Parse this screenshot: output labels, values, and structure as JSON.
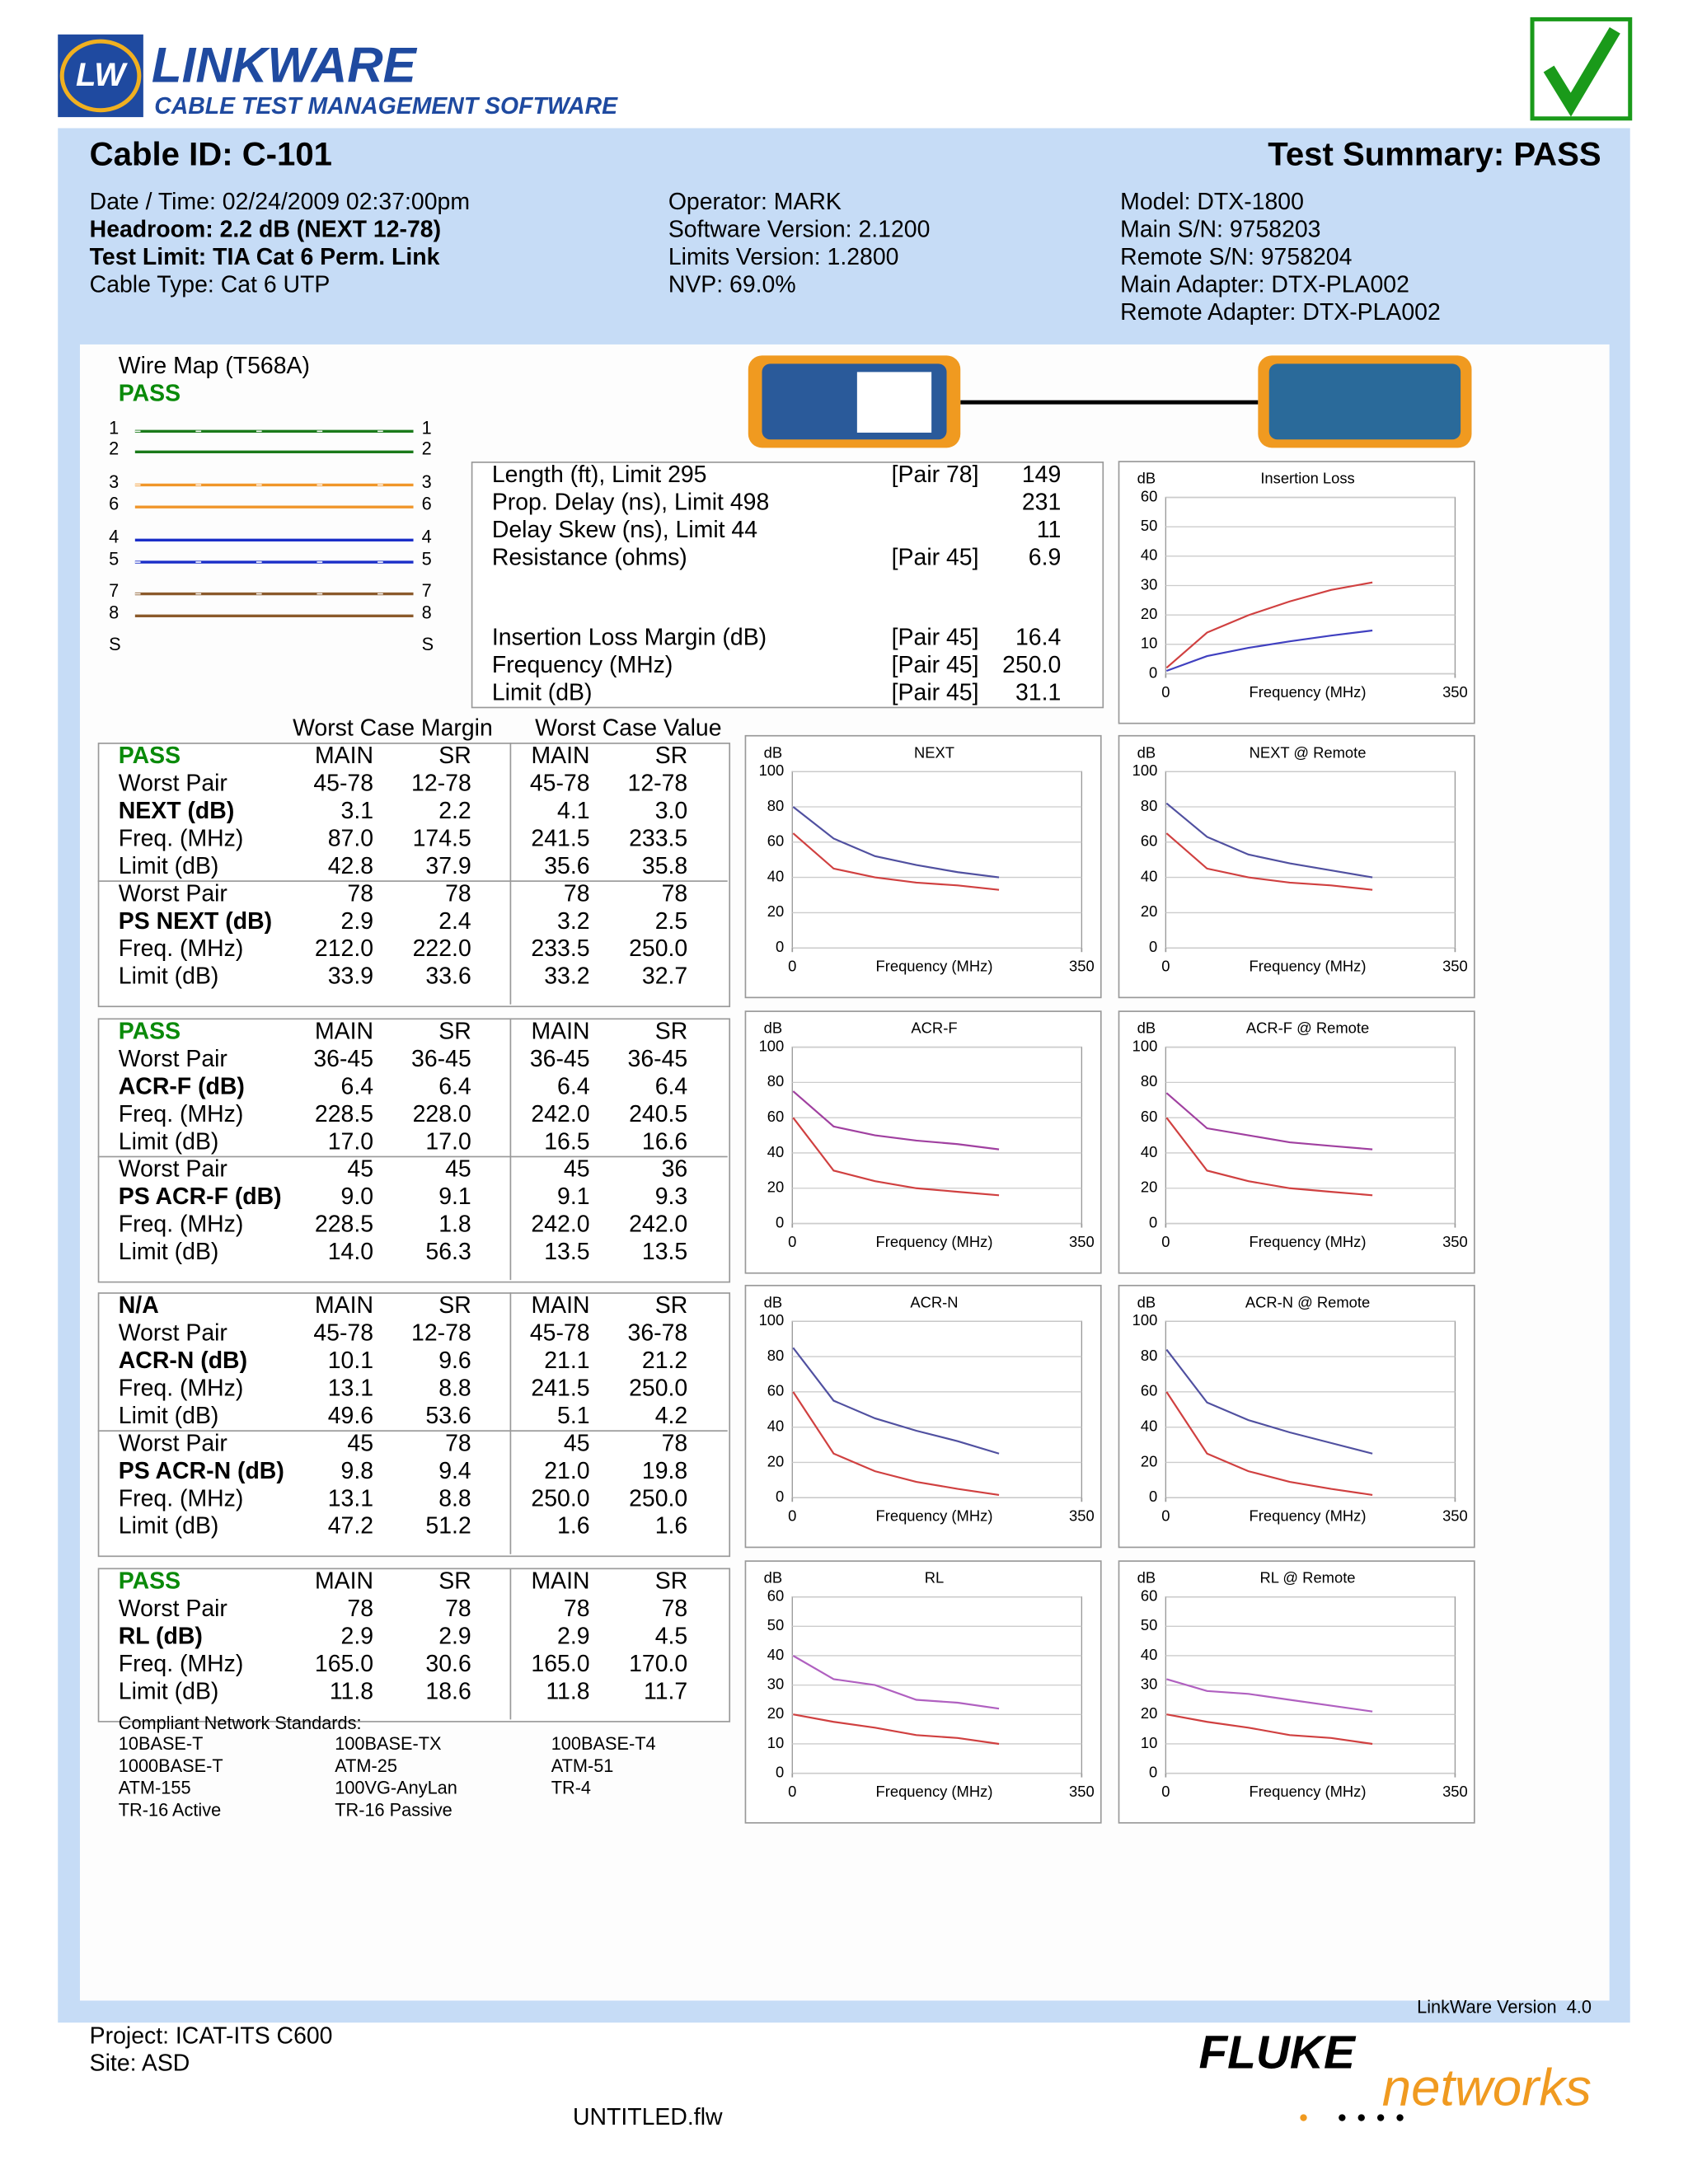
{
  "header": {
    "logo_mark": "LW",
    "logo_name": "LINKWARE",
    "logo_tagline": "CABLE TEST MANAGEMENT SOFTWARE"
  },
  "summary": {
    "cable_id": "Cable ID: C-101",
    "test_summary": "Test Summary: PASS",
    "col1": [
      "Date / Time: 02/24/2009 02:37:00pm",
      "Headroom: 2.2 dB (NEXT 12-78)",
      "Test Limit: TIA Cat 6 Perm. Link",
      "Cable Type: Cat 6 UTP"
    ],
    "col2": [
      "Operator: MARK",
      "Software Version: 2.1200",
      "Limits Version: 1.2800",
      "NVP: 69.0%"
    ],
    "col3": [
      "Model: DTX-1800",
      "Main S/N: 9758203",
      "Remote S/N: 9758204",
      "Main Adapter: DTX-PLA002",
      "Remote Adapter: DTX-PLA002"
    ]
  },
  "wire_map": {
    "title": "Wire Map (T568A)",
    "status": "PASS",
    "pins": [
      "1",
      "2",
      "3",
      "6",
      "4",
      "5",
      "7",
      "8",
      "S"
    ]
  },
  "length_table": {
    "rows": [
      {
        "label": "Length (ft), Limit 295",
        "pair": "[Pair 78]",
        "value": "149"
      },
      {
        "label": "Prop. Delay (ns), Limit 498",
        "value": "231"
      },
      {
        "label": "Delay Skew (ns), Limit 44",
        "value": "11"
      },
      {
        "label": "Resistance (ohms)",
        "pair": "[Pair 45]",
        "value": "6.9"
      }
    ],
    "insertion_rows": [
      {
        "label": "Insertion Loss Margin (dB)",
        "pair": "[Pair 45]",
        "value": "16.4"
      },
      {
        "label": "Frequency (MHz)",
        "pair": "[Pair 45]",
        "value": "250.0"
      },
      {
        "label": "Limit (dB)",
        "pair": "[Pair 45]",
        "value": "31.1"
      }
    ]
  },
  "worst_case": {
    "margin_header": "Worst Case Margin",
    "value_header": "Worst Case Value",
    "tables": [
      {
        "status": "PASS",
        "columns": [
          "MAIN",
          "SR",
          "MAIN",
          "SR"
        ],
        "rows": [
          [
            "Worst Pair",
            "45-78",
            "12-78",
            "45-78",
            "12-78"
          ],
          [
            "NEXT (dB)",
            "3.1",
            "2.2",
            "4.1",
            "3.0"
          ],
          [
            "Freq. (MHz)",
            "87.0",
            "174.5",
            "241.5",
            "233.5"
          ],
          [
            "Limit (dB)",
            "42.8",
            "37.9",
            "35.6",
            "35.8"
          ],
          [
            "Worst Pair",
            "78",
            "78",
            "78",
            "78"
          ],
          [
            "PS NEXT (dB)",
            "2.9",
            "2.4",
            "3.2",
            "2.5"
          ],
          [
            "Freq. (MHz)",
            "212.0",
            "222.0",
            "233.5",
            "250.0"
          ],
          [
            "Limit (dB)",
            "33.9",
            "33.6",
            "33.2",
            "32.7"
          ]
        ]
      },
      {
        "status": "PASS",
        "columns": [
          "MAIN",
          "SR",
          "MAIN",
          "SR"
        ],
        "rows": [
          [
            "Worst Pair",
            "36-45",
            "36-45",
            "36-45",
            "36-45"
          ],
          [
            "ACR-F (dB)",
            "6.4",
            "6.4",
            "6.4",
            "6.4"
          ],
          [
            "Freq. (MHz)",
            "228.5",
            "228.0",
            "242.0",
            "240.5"
          ],
          [
            "Limit (dB)",
            "17.0",
            "17.0",
            "16.5",
            "16.6"
          ],
          [
            "Worst Pair",
            "45",
            "45",
            "45",
            "36"
          ],
          [
            "PS ACR-F (dB)",
            "9.0",
            "9.1",
            "9.1",
            "9.3"
          ],
          [
            "Freq. (MHz)",
            "228.5",
            "1.8",
            "242.0",
            "242.0"
          ],
          [
            "Limit (dB)",
            "14.0",
            "56.3",
            "13.5",
            "13.5"
          ]
        ]
      },
      {
        "status": "N/A",
        "columns": [
          "MAIN",
          "SR",
          "MAIN",
          "SR"
        ],
        "rows": [
          [
            "Worst Pair",
            "45-78",
            "12-78",
            "45-78",
            "36-78"
          ],
          [
            "ACR-N (dB)",
            "10.1",
            "9.6",
            "21.1",
            "21.2"
          ],
          [
            "Freq. (MHz)",
            "13.1",
            "8.8",
            "241.5",
            "250.0"
          ],
          [
            "Limit (dB)",
            "49.6",
            "53.6",
            "5.1",
            "4.2"
          ],
          [
            "Worst Pair",
            "45",
            "78",
            "45",
            "78"
          ],
          [
            "PS ACR-N (dB)",
            "9.8",
            "9.4",
            "21.0",
            "19.8"
          ],
          [
            "Freq. (MHz)",
            "13.1",
            "8.8",
            "250.0",
            "250.0"
          ],
          [
            "Limit (dB)",
            "47.2",
            "51.2",
            "1.6",
            "1.6"
          ]
        ]
      },
      {
        "status": "PASS",
        "columns": [
          "MAIN",
          "SR",
          "MAIN",
          "SR"
        ],
        "rows": [
          [
            "Worst Pair",
            "78",
            "78",
            "78",
            "78"
          ],
          [
            "RL (dB)",
            "2.9",
            "2.9",
            "2.9",
            "4.5"
          ],
          [
            "Freq. (MHz)",
            "165.0",
            "30.6",
            "165.0",
            "170.0"
          ],
          [
            "Limit (dB)",
            "11.8",
            "18.6",
            "11.8",
            "11.7"
          ]
        ]
      }
    ]
  },
  "standards": {
    "title": "Compliant Network Standards:",
    "items": [
      "10BASE-T",
      "100BASE-TX",
      "100BASE-T4",
      "1000BASE-T",
      "ATM-25",
      "ATM-51",
      "ATM-155",
      "100VG-AnyLan",
      "TR-4",
      "TR-16 Active",
      "TR-16 Passive"
    ]
  },
  "chart_data": [
    {
      "type": "line",
      "title": "Insertion Loss",
      "y_label": "dB",
      "x_label": "Frequency (MHz)",
      "xlim": [
        0,
        350
      ],
      "xticks": [
        0,
        350
      ],
      "ylim": [
        0,
        60
      ],
      "yticks": [
        0,
        10,
        20,
        30,
        40,
        50,
        60
      ],
      "grid": true,
      "x": [
        1,
        50,
        100,
        150,
        200,
        250
      ],
      "series": [
        {
          "color": "#d04040",
          "values": [
            2,
            14,
            19.9,
            24.6,
            28.5,
            31.1
          ]
        },
        {
          "color": "#4040c0",
          "values": [
            1,
            6,
            8.8,
            11,
            13,
            14.7
          ]
        }
      ]
    },
    {
      "type": "line",
      "title": "NEXT",
      "y_label": "dB",
      "x_label": "Frequency (MHz)",
      "xlim": [
        0,
        350
      ],
      "xticks": [
        0,
        350
      ],
      "ylim": [
        0,
        100
      ],
      "yticks": [
        0,
        20,
        40,
        60,
        80,
        100
      ],
      "grid": true,
      "x": [
        1,
        50,
        100,
        150,
        200,
        250
      ],
      "series": [
        {
          "color": "#d04040",
          "values": [
            65,
            45,
            40,
            37,
            35.5,
            33
          ]
        },
        {
          "color": "#5050a0",
          "values": [
            80,
            62,
            52,
            47,
            43,
            40
          ]
        }
      ]
    },
    {
      "type": "line",
      "title": "NEXT @ Remote",
      "y_label": "dB",
      "x_label": "Frequency (MHz)",
      "xlim": [
        0,
        350
      ],
      "xticks": [
        0,
        350
      ],
      "ylim": [
        0,
        100
      ],
      "yticks": [
        0,
        20,
        40,
        60,
        80,
        100
      ],
      "grid": true,
      "x": [
        1,
        50,
        100,
        150,
        200,
        250
      ],
      "series": [
        {
          "color": "#d04040",
          "values": [
            65,
            45,
            40,
            37,
            35.5,
            33
          ]
        },
        {
          "color": "#5050a0",
          "values": [
            82,
            63,
            53,
            48,
            44,
            40
          ]
        }
      ]
    },
    {
      "type": "line",
      "title": "ACR-F",
      "y_label": "dB",
      "x_label": "Frequency (MHz)",
      "xlim": [
        0,
        350
      ],
      "xticks": [
        0,
        350
      ],
      "ylim": [
        0,
        100
      ],
      "yticks": [
        0,
        20,
        40,
        60,
        80,
        100
      ],
      "grid": true,
      "x": [
        1,
        50,
        100,
        150,
        200,
        250
      ],
      "series": [
        {
          "color": "#d04040",
          "values": [
            60,
            30,
            24,
            20,
            18,
            16
          ]
        },
        {
          "color": "#a040a0",
          "values": [
            75,
            55,
            50,
            47,
            45,
            42
          ]
        }
      ]
    },
    {
      "type": "line",
      "title": "ACR-F @ Remote",
      "y_label": "dB",
      "x_label": "Frequency (MHz)",
      "xlim": [
        0,
        350
      ],
      "xticks": [
        0,
        350
      ],
      "ylim": [
        0,
        100
      ],
      "yticks": [
        0,
        20,
        40,
        60,
        80,
        100
      ],
      "grid": true,
      "x": [
        1,
        50,
        100,
        150,
        200,
        250
      ],
      "series": [
        {
          "color": "#d04040",
          "values": [
            60,
            30,
            24,
            20,
            18,
            16
          ]
        },
        {
          "color": "#a040a0",
          "values": [
            74,
            54,
            50,
            46,
            44,
            42
          ]
        }
      ]
    },
    {
      "type": "line",
      "title": "ACR-N",
      "y_label": "dB",
      "x_label": "Frequency (MHz)",
      "xlim": [
        0,
        350
      ],
      "xticks": [
        0,
        350
      ],
      "ylim": [
        0,
        100
      ],
      "yticks": [
        0,
        20,
        40,
        60,
        80,
        100
      ],
      "grid": true,
      "x": [
        1,
        50,
        100,
        150,
        200,
        250
      ],
      "series": [
        {
          "color": "#d04040",
          "values": [
            60,
            25,
            15,
            9,
            5,
            1.6
          ]
        },
        {
          "color": "#5050a0",
          "values": [
            85,
            55,
            45,
            38,
            32,
            25
          ]
        }
      ]
    },
    {
      "type": "line",
      "title": "ACR-N @ Remote",
      "y_label": "dB",
      "x_label": "Frequency (MHz)",
      "xlim": [
        0,
        350
      ],
      "xticks": [
        0,
        350
      ],
      "ylim": [
        0,
        100
      ],
      "yticks": [
        0,
        20,
        40,
        60,
        80,
        100
      ],
      "grid": true,
      "x": [
        1,
        50,
        100,
        150,
        200,
        250
      ],
      "series": [
        {
          "color": "#d04040",
          "values": [
            60,
            25,
            15,
            9,
            5,
            1.6
          ]
        },
        {
          "color": "#5050a0",
          "values": [
            84,
            54,
            44,
            37,
            31,
            25
          ]
        }
      ]
    },
    {
      "type": "line",
      "title": "RL",
      "y_label": "dB",
      "x_label": "Frequency (MHz)",
      "xlim": [
        0,
        350
      ],
      "xticks": [
        0,
        350
      ],
      "ylim": [
        0,
        60
      ],
      "yticks": [
        0,
        10,
        20,
        30,
        40,
        50,
        60
      ],
      "grid": true,
      "x": [
        1,
        50,
        100,
        150,
        200,
        250
      ],
      "series": [
        {
          "color": "#d04040",
          "values": [
            20,
            17.5,
            15.5,
            13,
            12,
            10
          ]
        },
        {
          "color": "#b060c0",
          "values": [
            40,
            32,
            30,
            25,
            24,
            22
          ]
        }
      ]
    },
    {
      "type": "line",
      "title": "RL @ Remote",
      "y_label": "dB",
      "x_label": "Frequency (MHz)",
      "xlim": [
        0,
        350
      ],
      "xticks": [
        0,
        350
      ],
      "ylim": [
        0,
        60
      ],
      "yticks": [
        0,
        10,
        20,
        30,
        40,
        50,
        60
      ],
      "grid": true,
      "x": [
        1,
        50,
        100,
        150,
        200,
        250
      ],
      "series": [
        {
          "color": "#d04040",
          "values": [
            20,
            17.5,
            15.5,
            13,
            12,
            10
          ]
        },
        {
          "color": "#b060c0",
          "values": [
            32,
            28,
            27,
            25,
            23,
            21
          ]
        }
      ]
    }
  ],
  "footer": {
    "version": "LinkWare Version  4.0",
    "project": "Project: ICAT-ITS C600",
    "site": "Site: ASD",
    "file": "UNTITLED.flw",
    "brand": "FLUKE",
    "brand_sub": "networks"
  }
}
